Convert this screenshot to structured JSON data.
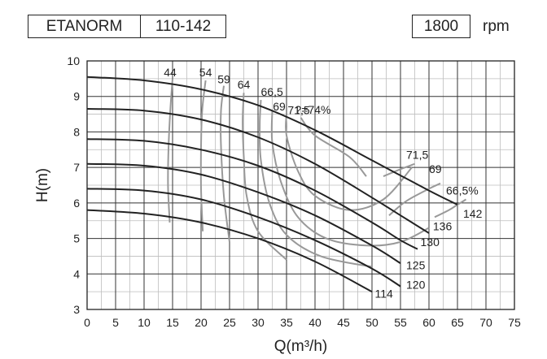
{
  "header": {
    "model": "ETANORM",
    "size": "110-142",
    "speed_value": "1800",
    "speed_unit": "rpm"
  },
  "colors": {
    "head_curve": "#222222",
    "efficiency_curve": "#999999",
    "grid": "#333333",
    "minor_grid": "#bdbdbd"
  },
  "chart_data": {
    "type": "line",
    "xlabel": "Q(m³/h)",
    "ylabel": "H(m)",
    "xlim": [
      0,
      75
    ],
    "ylim": [
      3,
      10
    ],
    "x_ticks": [
      "0",
      "5",
      "10",
      "15",
      "20",
      "25",
      "30",
      "35",
      "40",
      "45",
      "50",
      "55",
      "60",
      "65",
      "70",
      "75"
    ],
    "y_ticks": [
      "3",
      "4",
      "5",
      "6",
      "7",
      "8",
      "9",
      "10"
    ],
    "grid": true,
    "head_curves": [
      {
        "label": "142",
        "points": [
          [
            0,
            9.55
          ],
          [
            10,
            9.45
          ],
          [
            20,
            9.2
          ],
          [
            30,
            8.75
          ],
          [
            40,
            8.05
          ],
          [
            50,
            7.2
          ],
          [
            60,
            6.35
          ],
          [
            65,
            5.95
          ]
        ]
      },
      {
        "label": "136",
        "points": [
          [
            0,
            8.65
          ],
          [
            10,
            8.6
          ],
          [
            20,
            8.35
          ],
          [
            30,
            7.85
          ],
          [
            40,
            7.1
          ],
          [
            50,
            6.15
          ],
          [
            55,
            5.65
          ],
          [
            60,
            5.15
          ]
        ]
      },
      {
        "label": "130",
        "points": [
          [
            0,
            7.8
          ],
          [
            10,
            7.75
          ],
          [
            20,
            7.5
          ],
          [
            30,
            7.05
          ],
          [
            40,
            6.35
          ],
          [
            50,
            5.45
          ],
          [
            55,
            4.95
          ],
          [
            58,
            4.7
          ]
        ]
      },
      {
        "label": "125",
        "points": [
          [
            0,
            7.1
          ],
          [
            10,
            7.05
          ],
          [
            20,
            6.8
          ],
          [
            30,
            6.3
          ],
          [
            40,
            5.65
          ],
          [
            50,
            4.8
          ],
          [
            55,
            4.3
          ]
        ]
      },
      {
        "label": "120",
        "points": [
          [
            0,
            6.4
          ],
          [
            10,
            6.35
          ],
          [
            20,
            6.1
          ],
          [
            30,
            5.6
          ],
          [
            40,
            4.95
          ],
          [
            50,
            4.15
          ],
          [
            55,
            3.65
          ]
        ]
      },
      {
        "label": "114",
        "points": [
          [
            0,
            5.8
          ],
          [
            10,
            5.7
          ],
          [
            20,
            5.45
          ],
          [
            30,
            5.0
          ],
          [
            40,
            4.35
          ],
          [
            50,
            3.5
          ]
        ]
      }
    ],
    "efficiency_curves": [
      {
        "label": "44",
        "points": [
          [
            14.5,
            5.45
          ],
          [
            14.2,
            6.5
          ],
          [
            14.3,
            7.6
          ],
          [
            14.6,
            8.6
          ],
          [
            15.0,
            9.5
          ]
        ]
      },
      {
        "label": "54",
        "points": [
          [
            20.3,
            5.2
          ],
          [
            20,
            6.4
          ],
          [
            20,
            7.6
          ],
          [
            20.2,
            8.6
          ],
          [
            20.8,
            9.45
          ]
        ]
      },
      {
        "label": "59",
        "points": [
          [
            25,
            4.9
          ],
          [
            24,
            6.2
          ],
          [
            23.5,
            7.6
          ],
          [
            23.5,
            8.6
          ],
          [
            24,
            9.3
          ]
        ]
      },
      {
        "label": "64",
        "points": [
          [
            35,
            4.4
          ],
          [
            30,
            5.2
          ],
          [
            28,
            6.2
          ],
          [
            27.5,
            7.3
          ],
          [
            27.3,
            8.3
          ],
          [
            27.5,
            9.1
          ]
        ]
      },
      {
        "label": "66,5",
        "points": [
          [
            50,
            4.2
          ],
          [
            41,
            4.5
          ],
          [
            35,
            5.1
          ],
          [
            32,
            6.0
          ],
          [
            30.5,
            7.2
          ],
          [
            30.3,
            8.2
          ],
          [
            30.5,
            8.9
          ]
        ]
      },
      {
        "label": "69",
        "points": [
          [
            60,
            5.3
          ],
          [
            55,
            4.9
          ],
          [
            49,
            4.8
          ],
          [
            42,
            5.0
          ],
          [
            37,
            5.6
          ],
          [
            34,
            6.6
          ],
          [
            32.5,
            7.7
          ],
          [
            32.5,
            8.6
          ]
        ]
      },
      {
        "label": "71,5",
        "points": [
          [
            57,
            7.0
          ],
          [
            52,
            6.1
          ],
          [
            46,
            5.8
          ],
          [
            40,
            6.2
          ],
          [
            37,
            6.9
          ],
          [
            35,
            7.9
          ],
          [
            35,
            8.5
          ]
        ]
      },
      {
        "label": "?=74%",
        "points": [
          [
            49,
            6.75
          ],
          [
            46,
            7.3
          ],
          [
            40,
            7.9
          ],
          [
            37.5,
            8.4
          ]
        ]
      },
      {
        "label": "71,5",
        "points": [
          [
            52,
            6.75
          ],
          [
            55,
            6.95
          ],
          [
            57.5,
            7.1
          ]
        ]
      },
      {
        "label": "69",
        "points": [
          [
            53,
            5.65
          ],
          [
            56,
            6.05
          ],
          [
            60,
            6.4
          ],
          [
            62,
            6.55
          ]
        ]
      },
      {
        "label": "66,5%",
        "points": [
          [
            61,
            5.6
          ],
          [
            63.5,
            5.8
          ],
          [
            65,
            5.95
          ],
          [
            66.5,
            6.1
          ]
        ]
      }
    ]
  }
}
